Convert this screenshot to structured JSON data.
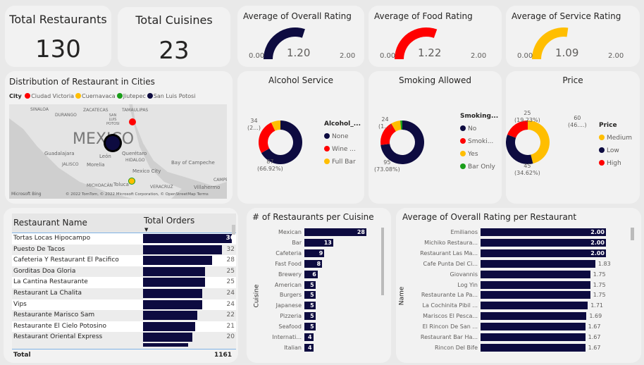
{
  "kpis": {
    "total_restaurants": {
      "label": "Total Restaurants",
      "value": "130"
    },
    "total_cuisines": {
      "label": "Total Cuisines",
      "value": "23"
    }
  },
  "gauges": [
    {
      "title": "Average of Overall Rating",
      "min": "0.00",
      "max": "2.00",
      "value": "1.20",
      "color": "#0d0b40"
    },
    {
      "title": "Average of Food Rating",
      "min": "0.00",
      "max": "2.00",
      "value": "1.22",
      "color": "#ff0000"
    },
    {
      "title": "Average of Service Rating",
      "min": "0.00",
      "max": "2.00",
      "value": "1.09",
      "color": "#ffbe00"
    }
  ],
  "map": {
    "title": "Distribution of Restaurant in Cities",
    "legend_title": "City",
    "legend": [
      {
        "name": "Ciudad Victoria",
        "color": "#ff0000"
      },
      {
        "name": "Cuernavaca",
        "color": "#ffbe00"
      },
      {
        "name": "Jiutepec",
        "color": "#1a9e1a"
      },
      {
        "name": "San Luis Potosi",
        "color": "#0d0b40"
      }
    ],
    "labels": [
      "SINALOA",
      "DURANGO",
      "ZACATECAS",
      "TAMAULIPAS",
      "SAN LUIS POTOSI",
      "MEXICO",
      "Guadalajara",
      "León",
      "Querétaro",
      "HIDALGO",
      "JALISCO",
      "Morelia",
      "Bay of Campeche",
      "Mexico City",
      "MICHOACÁN",
      "Toluca",
      "VERACRUZ",
      "Villahermo",
      "CAMPE"
    ],
    "bing": "Microsoft Bing",
    "copyright": "© 2022 TomTom, © 2022 Microsoft Corporation, © OpenStreetMap  Terms"
  },
  "donuts": [
    {
      "title": "Alcohol Service",
      "legend_title": "Alcohol_...",
      "slices": [
        {
          "name": "None",
          "value": 87,
          "color": "#0d0b40"
        },
        {
          "name": "Wine ...",
          "value": 34,
          "color": "#ff0000"
        },
        {
          "name": "Full Bar",
          "value": 9,
          "color": "#ffbe00"
        }
      ],
      "labels": [
        {
          "a": "34",
          "b": "(2...)"
        },
        {
          "a": "87",
          "b": "(66.92%)"
        }
      ]
    },
    {
      "title": "Smoking Allowed",
      "legend_title": "Smoking...",
      "slices": [
        {
          "name": "No",
          "value": 95,
          "color": "#0d0b40"
        },
        {
          "name": "Smoki...",
          "value": 24,
          "color": "#ff0000"
        },
        {
          "name": "Yes",
          "value": 9,
          "color": "#ffbe00"
        },
        {
          "name": "Bar Only",
          "value": 2,
          "color": "#1a9e1a"
        }
      ],
      "labels": [
        {
          "a": "24",
          "b": "(1...)"
        },
        {
          "a": "95",
          "b": "(73.08%)"
        }
      ]
    },
    {
      "title": "Price",
      "legend_title": "Price",
      "slices": [
        {
          "name": "Medium",
          "value": 60,
          "color": "#ffbe00"
        },
        {
          "name": "Low",
          "value": 45,
          "color": "#0d0b40"
        },
        {
          "name": "High",
          "value": 25,
          "color": "#ff0000"
        }
      ],
      "labels": [
        {
          "a": "25",
          "b": "(19.23%)"
        },
        {
          "a": "60",
          "b": "(46....)"
        },
        {
          "a": "45",
          "b": "(34.62%)"
        }
      ]
    }
  ],
  "table": {
    "headers": [
      "Restaurant Name",
      "Total Orders"
    ],
    "total_label": "Total",
    "total_value": "1161",
    "rows": [
      [
        "Tortas Locas Hipocampo",
        36
      ],
      [
        "Puesto De Tacos",
        32
      ],
      [
        "Cafeteria Y Restaurant El Pacifico",
        28
      ],
      [
        "Gorditas Doa Gloria",
        25
      ],
      [
        "La Cantina Restaurante",
        25
      ],
      [
        "Restaurant La Chalita",
        24
      ],
      [
        "Vips",
        24
      ],
      [
        "Restaurante Marisco Sam",
        22
      ],
      [
        "Restaurante El Cielo Potosino",
        21
      ],
      [
        "Restaurant Oriental Express",
        20
      ]
    ]
  },
  "chart_data": [
    {
      "type": "bar",
      "title": "# of Restaurants per Cuisine",
      "ylabel": "Cuisine",
      "categories": [
        "Mexican",
        "Bar",
        "Cafeteria",
        "Fast Food",
        "Brewery",
        "American",
        "Burgers",
        "Japanese",
        "Pizzeria",
        "Seafood",
        "Internati...",
        "Italian"
      ],
      "values": [
        28,
        13,
        9,
        8,
        6,
        5,
        5,
        5,
        5,
        5,
        4,
        4
      ]
    },
    {
      "type": "bar",
      "title": "Average of Overall Rating per Restaurant",
      "ylabel": "Name",
      "categories": [
        "Emilianos",
        "Michiko Restaura...",
        "Restaurant Las Ma...",
        "Cafe Punta Del Ci...",
        "Giovannis",
        "Log Yin",
        "Restaurante La Pa...",
        "La Cochinita Pibil ...",
        "Mariscos El Pesca...",
        "El Rincon De San ...",
        "Restaurant Bar Ha...",
        "Rincon Del Bife"
      ],
      "values": [
        "2.00",
        "2.00",
        "2.00",
        "1.83",
        "1.75",
        "1.75",
        "1.75",
        "1.71",
        "1.69",
        "1.67",
        "1.67",
        "1.67"
      ]
    }
  ]
}
